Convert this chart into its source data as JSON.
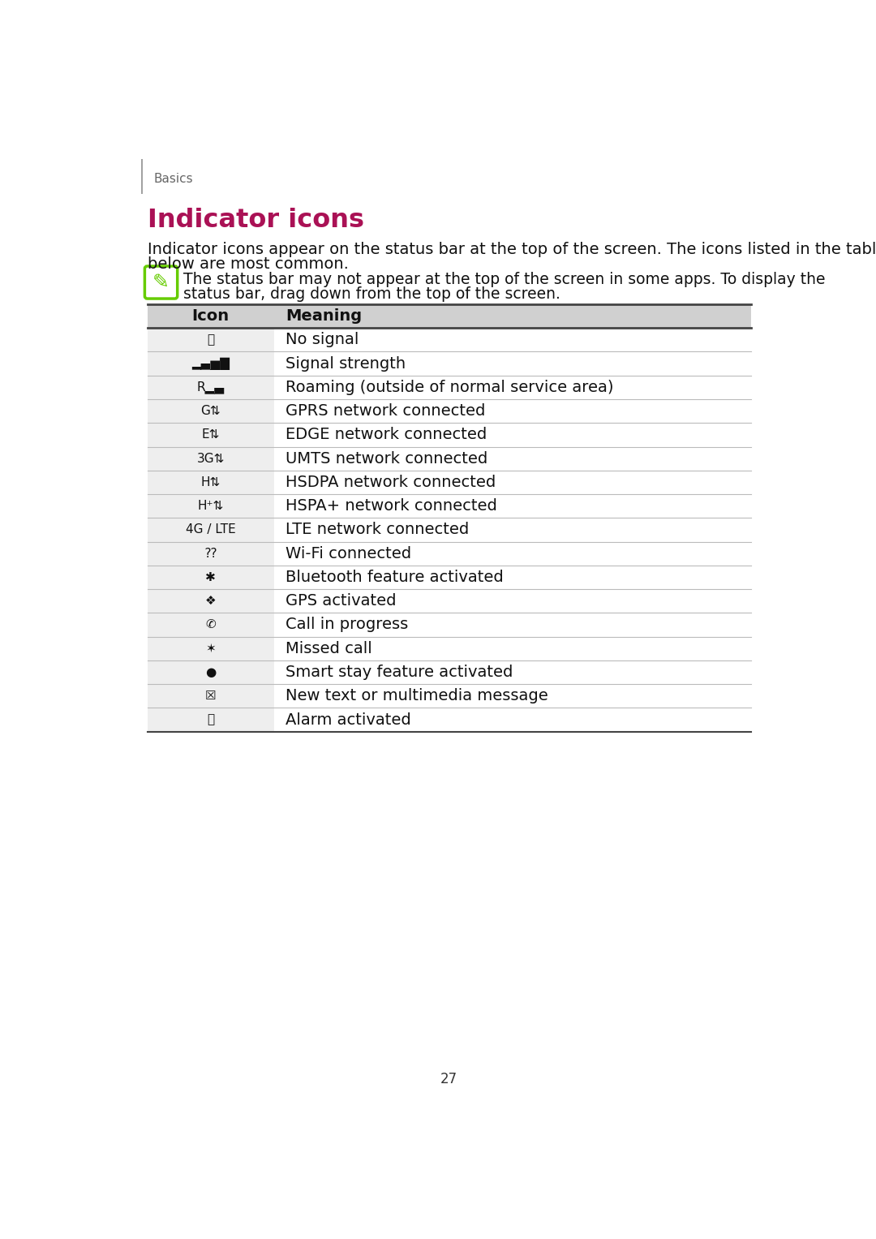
{
  "page_bg": "#ffffff",
  "page_num": "27",
  "header_text": "Basics",
  "title": "Indicator icons",
  "title_color": "#aa1155",
  "body_line1": "Indicator icons appear on the status bar at the top of the screen. The icons listed in the table",
  "body_line2": "below are most common.",
  "note_line1": "The status bar may not appear at the top of the screen in some apps. To display the",
  "note_line2": "status bar, drag down from the top of the screen.",
  "note_icon_color": "#66cc00",
  "table_header_col1": "Icon",
  "table_header_col2": "Meaning",
  "table_header_bg": "#d0d0d0",
  "table_top_line_color": "#444444",
  "table_line_color": "#bbbbbb",
  "icon_col_bg": "#eeeeee",
  "meanings": [
    "No signal",
    "Signal strength",
    "Roaming (outside of normal service area)",
    "GPRS network connected",
    "EDGE network connected",
    "UMTS network connected",
    "HSDPA network connected",
    "HSPA+ network connected",
    "LTE network connected",
    "Wi-Fi connected",
    "Bluetooth feature activated",
    "GPS activated",
    "Call in progress",
    "Missed call",
    "Smart stay feature activated",
    "New text or multimedia message",
    "Alarm activated"
  ],
  "font_size_body": 14,
  "font_size_meaning": 14,
  "font_size_icon": 11,
  "font_size_header_label": 11,
  "font_size_title": 23,
  "font_size_table_header": 14
}
